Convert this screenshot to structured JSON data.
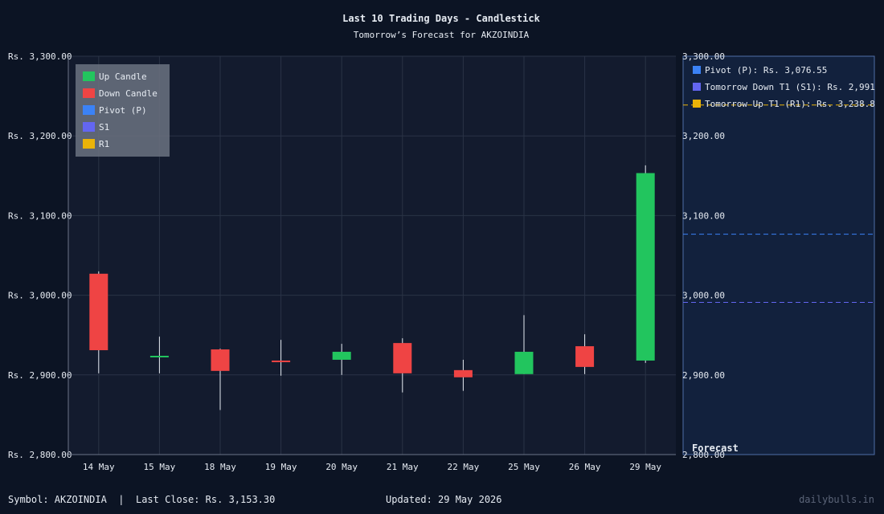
{
  "chart_data": {
    "type": "candlestick",
    "title": "Last 10 Trading Days - Candlestick",
    "subtitle": "Tomorrow’s Forecast for AKZOINDIA",
    "categories": [
      "14 May",
      "15 May",
      "18 May",
      "19 May",
      "20 May",
      "21 May",
      "22 May",
      "25 May",
      "26 May",
      "29 May"
    ],
    "candles": [
      {
        "date": "14 May",
        "open": 3027,
        "high": 3030,
        "low": 2902,
        "close": 2931
      },
      {
        "date": "15 May",
        "open": 2922,
        "high": 2948,
        "low": 2902,
        "close": 2924
      },
      {
        "date": "18 May",
        "open": 2932,
        "high": 2933,
        "low": 2856,
        "close": 2905
      },
      {
        "date": "19 May",
        "open": 2918,
        "high": 2944,
        "low": 2899,
        "close": 2916
      },
      {
        "date": "20 May",
        "open": 2919,
        "high": 2939,
        "low": 2900,
        "close": 2929
      },
      {
        "date": "21 May",
        "open": 2940,
        "high": 2946,
        "low": 2878,
        "close": 2902
      },
      {
        "date": "22 May",
        "open": 2906,
        "high": 2919,
        "low": 2880,
        "close": 2897
      },
      {
        "date": "25 May",
        "open": 2901,
        "high": 2975,
        "low": 2901,
        "close": 2929
      },
      {
        "date": "26 May",
        "open": 2936,
        "high": 2951,
        "low": 2901,
        "close": 2910
      },
      {
        "date": "29 May",
        "open": 2918,
        "high": 3163,
        "low": 2915,
        "close": 3153.3
      }
    ],
    "ylim": [
      2800,
      3300
    ],
    "y_ticks": [
      2800,
      2900,
      3000,
      3100,
      3200,
      3300
    ],
    "y_tick_labels": [
      "Rs. 2,800.00",
      "Rs. 2,900.00",
      "Rs. 3,000.00",
      "Rs. 3,100.00",
      "Rs. 3,200.00",
      "Rs. 3,300.00"
    ],
    "right_tick_labels": [
      "2,800.00",
      "2,900.00",
      "3,000.00",
      "3,100.00",
      "3,200.00",
      "3,300.00"
    ],
    "grid": true,
    "legend_left": {
      "placement": "top-left",
      "items": [
        {
          "label": "Up Candle",
          "color": "#22c55e"
        },
        {
          "label": "Down Candle",
          "color": "#ef4444"
        },
        {
          "label": "Pivot (P)",
          "color": "#3b82f6"
        },
        {
          "label": "S1",
          "color": "#6366f1"
        },
        {
          "label": "R1",
          "color": "#eab308"
        }
      ]
    },
    "forecast": {
      "label": "Forecast",
      "legend_items": [
        {
          "label": "Pivot (P): Rs. 3,076.55",
          "color": "#3b82f6"
        },
        {
          "label": "Tomorrow Down T1 (S1): Rs. 2,991",
          "color": "#6366f1"
        },
        {
          "label": "Tomorrow Up T1 (R1): Rs. 3,238.8",
          "color": "#eab308"
        }
      ],
      "lines": [
        {
          "name": "Pivot",
          "value": 3076.55,
          "color": "#3b82f6"
        },
        {
          "name": "S1",
          "value": 2991,
          "color": "#6366f1"
        },
        {
          "name": "R1",
          "value": 3238.8,
          "color": "#eab308"
        }
      ]
    },
    "colors": {
      "up": "#22c55e",
      "down": "#ef4444",
      "background": "#0c1424",
      "plot": "#131b2e",
      "grid": "#2a3346",
      "forecast_panel": "#12213d",
      "forecast_border": "#4f6ea8"
    }
  },
  "footer": {
    "symbol": "Symbol: AKZOINDIA",
    "separator": "|",
    "last_close": "Last Close: Rs. 3,153.30",
    "updated": "Updated: 29 May 2026",
    "brand": "dailybulls.in"
  }
}
